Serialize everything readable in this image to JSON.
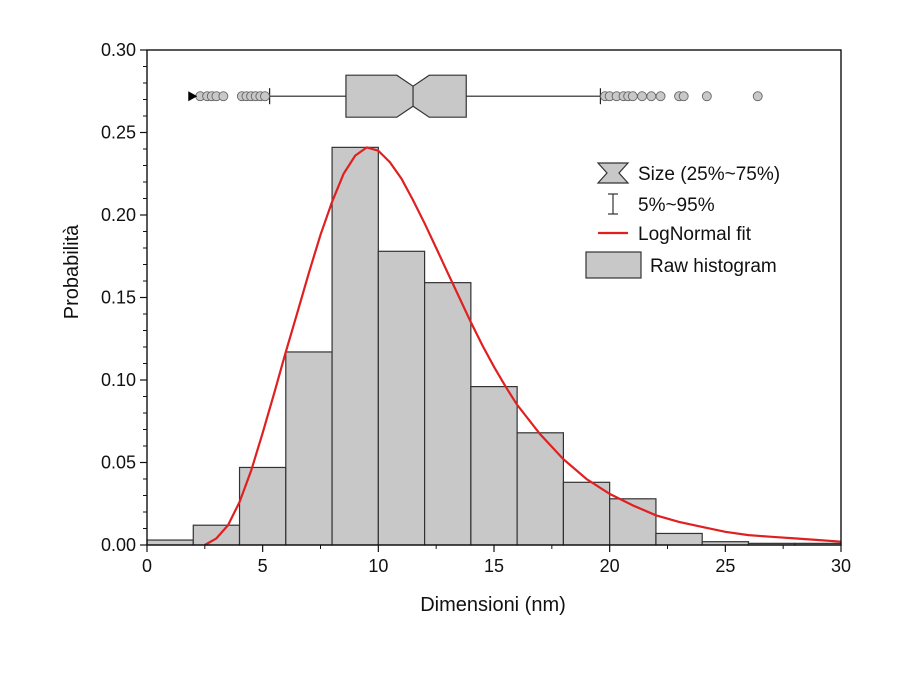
{
  "chart_data": {
    "type": "bar",
    "xlabel": "Dimensioni (nm)",
    "ylabel": "Probabilità",
    "xlim": [
      0,
      30
    ],
    "ylim": [
      0,
      0.3
    ],
    "x_ticks": [
      "0",
      "5",
      "10",
      "15",
      "20",
      "25",
      "30"
    ],
    "y_ticks": [
      "0.00",
      "0.05",
      "0.10",
      "0.15",
      "0.20",
      "0.25",
      "0.30"
    ],
    "grid": false,
    "legend_position": "top-right",
    "histogram": {
      "name": "Raw histogram",
      "bins": [
        {
          "x0": 0,
          "x1": 2,
          "value": 0.003
        },
        {
          "x0": 2,
          "x1": 4,
          "value": 0.012
        },
        {
          "x0": 4,
          "x1": 6,
          "value": 0.047
        },
        {
          "x0": 6,
          "x1": 8,
          "value": 0.117
        },
        {
          "x0": 8,
          "x1": 10,
          "value": 0.241
        },
        {
          "x0": 10,
          "x1": 12,
          "value": 0.178
        },
        {
          "x0": 12,
          "x1": 14,
          "value": 0.159
        },
        {
          "x0": 14,
          "x1": 16,
          "value": 0.096
        },
        {
          "x0": 16,
          "x1": 18,
          "value": 0.068
        },
        {
          "x0": 18,
          "x1": 20,
          "value": 0.038
        },
        {
          "x0": 20,
          "x1": 22,
          "value": 0.028
        },
        {
          "x0": 22,
          "x1": 24,
          "value": 0.007
        },
        {
          "x0": 24,
          "x1": 26,
          "value": 0.002
        },
        {
          "x0": 26,
          "x1": 28,
          "value": 0.001
        },
        {
          "x0": 28,
          "x1": 30,
          "value": 0.001
        }
      ]
    },
    "fit": {
      "name": "LogNormal fit",
      "color": "#e02020",
      "points": [
        [
          2.5,
          0.0
        ],
        [
          3.0,
          0.004
        ],
        [
          3.5,
          0.012
        ],
        [
          4.0,
          0.026
        ],
        [
          4.5,
          0.045
        ],
        [
          5.0,
          0.068
        ],
        [
          5.5,
          0.092
        ],
        [
          6.0,
          0.117
        ],
        [
          6.5,
          0.141
        ],
        [
          7.0,
          0.165
        ],
        [
          7.5,
          0.188
        ],
        [
          8.0,
          0.208
        ],
        [
          8.5,
          0.225
        ],
        [
          9.0,
          0.236
        ],
        [
          9.5,
          0.241
        ],
        [
          10.0,
          0.239
        ],
        [
          10.5,
          0.232
        ],
        [
          11.0,
          0.222
        ],
        [
          11.5,
          0.209
        ],
        [
          12.0,
          0.195
        ],
        [
          12.5,
          0.18
        ],
        [
          13.0,
          0.165
        ],
        [
          13.5,
          0.15
        ],
        [
          14.0,
          0.135
        ],
        [
          14.5,
          0.121
        ],
        [
          15.0,
          0.108
        ],
        [
          15.5,
          0.096
        ],
        [
          16.0,
          0.085
        ],
        [
          17.0,
          0.067
        ],
        [
          18.0,
          0.052
        ],
        [
          19.0,
          0.04
        ],
        [
          20.0,
          0.031
        ],
        [
          21.0,
          0.024
        ],
        [
          22.0,
          0.018
        ],
        [
          23.0,
          0.014
        ],
        [
          24.0,
          0.011
        ],
        [
          25.0,
          0.008
        ],
        [
          26.0,
          0.006
        ],
        [
          27.0,
          0.005
        ],
        [
          28.0,
          0.004
        ],
        [
          29.0,
          0.003
        ],
        [
          30.0,
          0.002
        ]
      ]
    },
    "boxplot": {
      "name": "Size (25%~75%)",
      "whisker_name": "5%~95%",
      "y": 0.272,
      "q1": 8.6,
      "median": 11.5,
      "q3": 13.8,
      "notch_low": 10.8,
      "notch_high": 12.2,
      "whisker_low": 5.3,
      "whisker_high": 19.6,
      "mean_marker": 2.0,
      "outliers": [
        2.3,
        2.6,
        2.8,
        3.0,
        3.3,
        4.1,
        4.3,
        4.5,
        4.7,
        4.9,
        5.1,
        19.8,
        20.0,
        20.3,
        20.6,
        20.8,
        21.0,
        21.4,
        21.8,
        22.2,
        23.0,
        23.2,
        24.2,
        26.4
      ]
    },
    "legend": [
      {
        "label": "Size (25%~75%)",
        "icon": "notched-box-icon"
      },
      {
        "label": "5%~95%",
        "icon": "whisker-icon"
      },
      {
        "label": "LogNormal fit",
        "icon": "red-line-icon"
      },
      {
        "label": "Raw histogram",
        "icon": "gray-box-icon"
      }
    ],
    "colors": {
      "bar_fill": "#c8c8c8",
      "bar_stroke": "#333333",
      "fit": "#e02020",
      "outlier_fill": "#c8c8c8",
      "axis": "#111111"
    }
  }
}
